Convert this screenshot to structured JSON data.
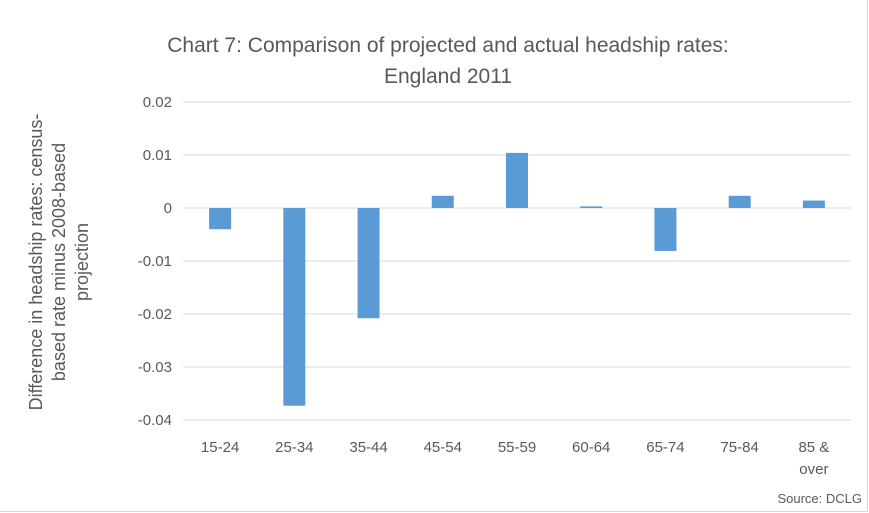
{
  "chart_data": {
    "type": "bar",
    "title_lines": [
      "Chart 7: Comparison of projected and actual headship rates:",
      "England 2011"
    ],
    "ylabel_lines": [
      "Difference in headship rates: census-",
      "based rate minus 2008-based",
      "projection"
    ],
    "xlabel": "",
    "categories": [
      "15-24",
      "25-34",
      "35-44",
      "45-54",
      "55-59",
      "60-64",
      "65-74",
      "75-84",
      "85 &\nover"
    ],
    "values": [
      -0.004,
      -0.0373,
      -0.0208,
      0.0023,
      0.0104,
      0.0003,
      -0.0081,
      0.0023,
      0.0014
    ],
    "ylim": [
      -0.04,
      0.02
    ],
    "yticks": [
      0.02,
      0.01,
      0,
      -0.01,
      -0.02,
      -0.03,
      -0.04
    ],
    "ytick_labels": [
      "0.02",
      "0.01",
      "0",
      "-0.01",
      "-0.02",
      "-0.03",
      "-0.04"
    ],
    "grid": true,
    "bar_color": "#5b9bd5",
    "grid_color": "#d9d9d9",
    "text_color": "#595959",
    "source": "Source: DCLG"
  }
}
